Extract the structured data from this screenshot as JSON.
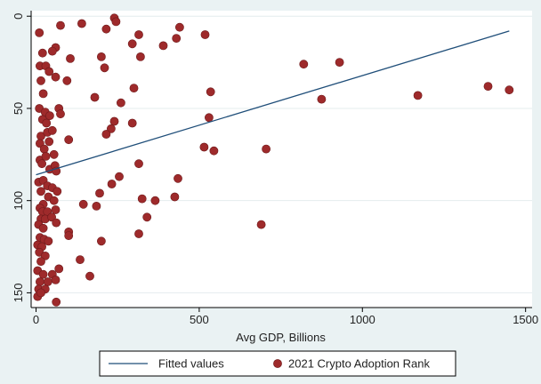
{
  "chart_data": {
    "type": "scatter",
    "title": "",
    "xlabel": "Avg GDP, Billions",
    "ylabel": "",
    "xlim": [
      -15,
      1520
    ],
    "ylim": [
      -3,
      158
    ],
    "y_reversed": true,
    "x_ticks": [
      0,
      500,
      1000,
      1500
    ],
    "y_ticks": [
      0,
      50,
      100,
      150
    ],
    "grid": "horizontal",
    "legend_position": "bottom",
    "colors": {
      "background": "#eaf2f3",
      "plot_background": "#ffffff",
      "grid": "#e4ecee",
      "points": "#9e2a2b",
      "fitted_line": "#1f4e79"
    },
    "series": [
      {
        "name": "2021 Crypto Adoption Rank",
        "kind": "scatter",
        "points": [
          [
            10,
            9
          ],
          [
            75,
            5
          ],
          [
            140,
            4
          ],
          [
            240,
            1
          ],
          [
            245,
            3
          ],
          [
            215,
            7
          ],
          [
            315,
            10
          ],
          [
            295,
            15
          ],
          [
            320,
            22
          ],
          [
            390,
            16
          ],
          [
            440,
            6
          ],
          [
            430,
            12
          ],
          [
            518,
            10
          ],
          [
            20,
            20
          ],
          [
            60,
            17
          ],
          [
            50,
            19
          ],
          [
            12,
            27
          ],
          [
            30,
            27
          ],
          [
            40,
            30
          ],
          [
            105,
            23
          ],
          [
            200,
            22
          ],
          [
            210,
            28
          ],
          [
            60,
            33
          ],
          [
            15,
            35
          ],
          [
            22,
            42
          ],
          [
            95,
            35
          ],
          [
            820,
            26
          ],
          [
            930,
            25
          ],
          [
            875,
            45
          ],
          [
            1170,
            43
          ],
          [
            1385,
            38
          ],
          [
            1450,
            40
          ],
          [
            535,
            41
          ],
          [
            530,
            55
          ],
          [
            515,
            71
          ],
          [
            545,
            73
          ],
          [
            705,
            72
          ],
          [
            690,
            113
          ],
          [
            10,
            50
          ],
          [
            28,
            52
          ],
          [
            42,
            54
          ],
          [
            70,
            50
          ],
          [
            75,
            53
          ],
          [
            20,
            56
          ],
          [
            32,
            58
          ],
          [
            180,
            44
          ],
          [
            260,
            47
          ],
          [
            240,
            57
          ],
          [
            230,
            61
          ],
          [
            215,
            64
          ],
          [
            295,
            58
          ],
          [
            300,
            39
          ],
          [
            15,
            65
          ],
          [
            35,
            63
          ],
          [
            50,
            62
          ],
          [
            12,
            69
          ],
          [
            40,
            68
          ],
          [
            100,
            67
          ],
          [
            25,
            72
          ],
          [
            55,
            75
          ],
          [
            12,
            78
          ],
          [
            18,
            80
          ],
          [
            30,
            76
          ],
          [
            42,
            83
          ],
          [
            58,
            81
          ],
          [
            62,
            84
          ],
          [
            255,
            87
          ],
          [
            232,
            91
          ],
          [
            315,
            80
          ],
          [
            435,
            88
          ],
          [
            8,
            90
          ],
          [
            22,
            89
          ],
          [
            35,
            92
          ],
          [
            50,
            93
          ],
          [
            15,
            95
          ],
          [
            65,
            95
          ],
          [
            38,
            98
          ],
          [
            55,
            100
          ],
          [
            22,
            102
          ],
          [
            195,
            96
          ],
          [
            145,
            102
          ],
          [
            185,
            103
          ],
          [
            325,
            99
          ],
          [
            365,
            100
          ],
          [
            425,
            98
          ],
          [
            12,
            104
          ],
          [
            20,
            106
          ],
          [
            35,
            106
          ],
          [
            60,
            105
          ],
          [
            15,
            110
          ],
          [
            28,
            110
          ],
          [
            48,
            109
          ],
          [
            8,
            113
          ],
          [
            22,
            115
          ],
          [
            62,
            112
          ],
          [
            340,
            109
          ],
          [
            100,
            117
          ],
          [
            100,
            119
          ],
          [
            200,
            122
          ],
          [
            315,
            118
          ],
          [
            12,
            120
          ],
          [
            25,
            121
          ],
          [
            38,
            122
          ],
          [
            5,
            124
          ],
          [
            18,
            125
          ],
          [
            10,
            128
          ],
          [
            28,
            130
          ],
          [
            15,
            133
          ],
          [
            135,
            132
          ],
          [
            5,
            138
          ],
          [
            22,
            140
          ],
          [
            50,
            140
          ],
          [
            70,
            137
          ],
          [
            12,
            144
          ],
          [
            36,
            144
          ],
          [
            60,
            143
          ],
          [
            8,
            148
          ],
          [
            28,
            148
          ],
          [
            165,
            141
          ],
          [
            5,
            152
          ],
          [
            15,
            150
          ],
          [
            62,
            155
          ]
        ]
      },
      {
        "name": "Fitted values",
        "kind": "line",
        "x": [
          0,
          1450
        ],
        "y": [
          86,
          8
        ]
      }
    ],
    "legend": [
      {
        "label": "Fitted values",
        "marker": "line"
      },
      {
        "label": "2021 Crypto Adoption Rank",
        "marker": "dot"
      }
    ]
  }
}
